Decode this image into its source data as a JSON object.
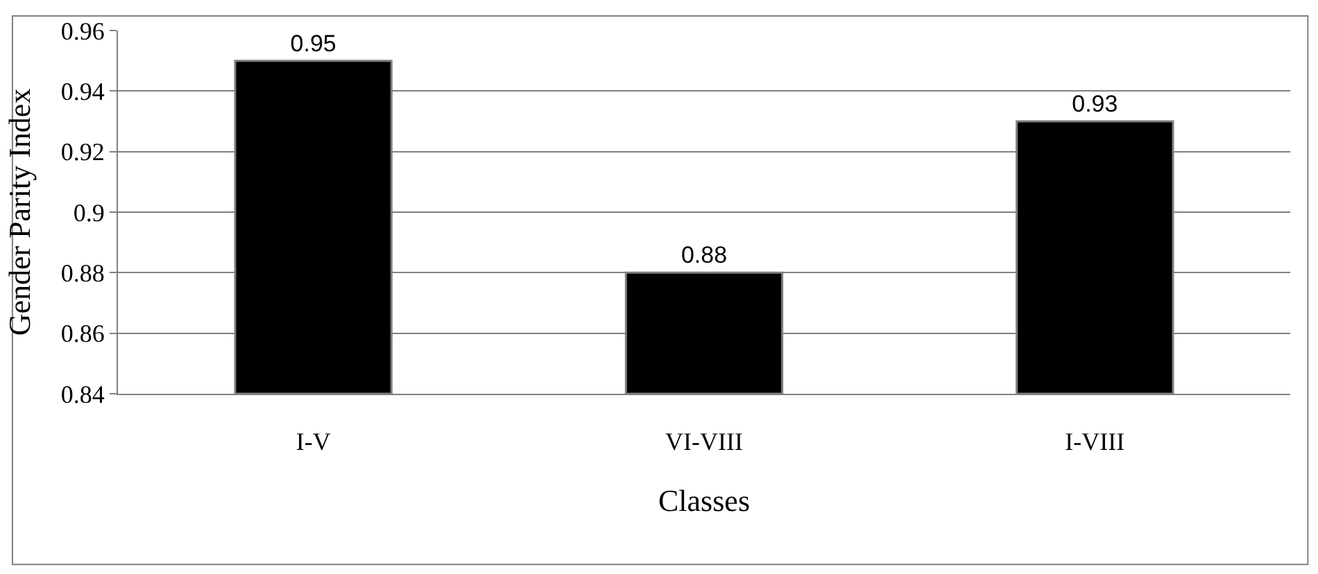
{
  "chart_data": {
    "type": "bar",
    "xlabel": "Classes",
    "ylabel": "Gender Parity Index",
    "categories": [
      "I-V",
      "VI-VIII",
      "I-VIII"
    ],
    "values": [
      0.95,
      0.88,
      0.93
    ],
    "color": "#000000",
    "ylim": [
      0.84,
      0.96
    ],
    "yticks": [
      0.84,
      0.86,
      0.88,
      0.9,
      0.92,
      0.94,
      0.96
    ],
    "grid": "y",
    "legend": false,
    "data_labels": true
  }
}
